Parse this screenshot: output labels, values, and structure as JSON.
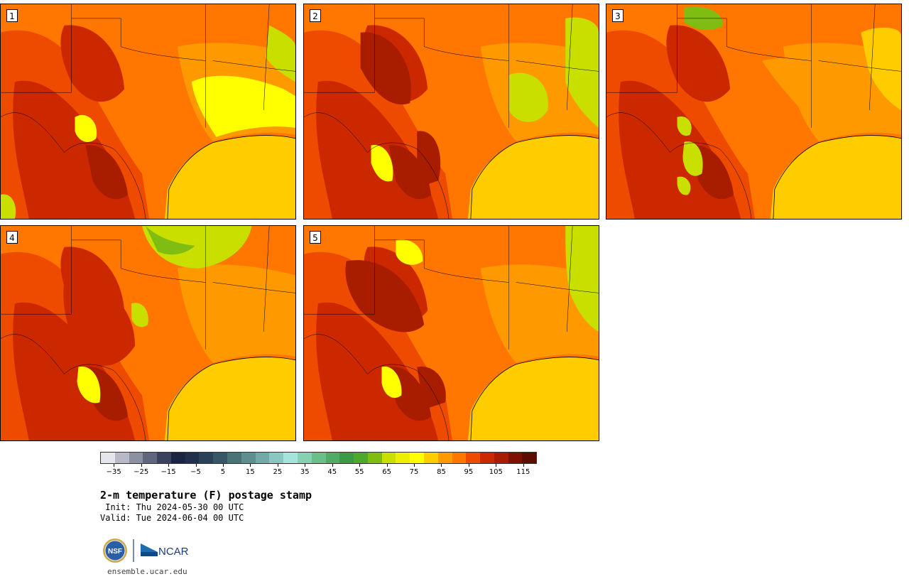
{
  "panels": [
    {
      "label": "1",
      "variant": 0
    },
    {
      "label": "2",
      "variant": 1
    },
    {
      "label": "3",
      "variant": 2
    },
    {
      "label": "4",
      "variant": 3
    },
    {
      "label": "5",
      "variant": 4
    }
  ],
  "colorbar": {
    "colors": [
      "#e4e6ec",
      "#b7bac6",
      "#8c90a1",
      "#5f667e",
      "#3a425f",
      "#1a2443",
      "#1f2f4c",
      "#2a4258",
      "#365866",
      "#4a7378",
      "#5e8e8f",
      "#73a9a8",
      "#8cc6c1",
      "#a5e4da",
      "#86d1af",
      "#69be8a",
      "#4fab65",
      "#3b9a45",
      "#4da82c",
      "#7fbd12",
      "#c8df00",
      "#eeee00",
      "#ffff00",
      "#ffcc00",
      "#ff9900",
      "#ff7700",
      "#ee4a00",
      "#cc2800",
      "#a81c00",
      "#801000",
      "#5c0c00"
    ],
    "tick_labels": [
      "−35",
      "−25",
      "−15",
      "−5",
      "5",
      "15",
      "25",
      "35",
      "45",
      "55",
      "65",
      "75",
      "85",
      "95",
      "105",
      "115"
    ],
    "tick_values": [
      -35,
      -25,
      -15,
      -5,
      5,
      15,
      25,
      35,
      45,
      55,
      65,
      75,
      85,
      95,
      105,
      115
    ],
    "min": -40,
    "max": 120
  },
  "title": "2-m temperature (F) postage stamp",
  "init": " Init: Thu 2024-05-30 00 UTC",
  "valid": "Valid: Tue 2024-06-04 00 UTC",
  "logos": {
    "nsf": "NSF",
    "ncar": "NCAR"
  },
  "website": "ensemble.ucar.edu"
}
